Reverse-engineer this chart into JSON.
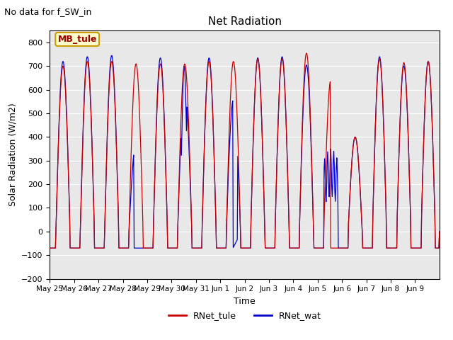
{
  "title": "Net Radiation",
  "subtitle": "No data for f_SW_in",
  "ylabel": "Solar Radiation (W/m2)",
  "xlabel": "Time",
  "ylim": [
    -200,
    850
  ],
  "yticks": [
    -200,
    -100,
    0,
    100,
    200,
    300,
    400,
    500,
    600,
    700,
    800
  ],
  "num_days": 16,
  "color_tule": "#cc0000",
  "color_wat": "#0000cc",
  "legend_labels": [
    "RNet_tule",
    "RNet_wat"
  ],
  "bg_color": "#e8e8e8",
  "legend_box_color": "#ffffcc",
  "legend_box_edge": "#cc9900",
  "site_label": "MB_tule",
  "tick_dates": [
    "May 25",
    "May 26",
    "May 27",
    "May 28",
    "May 29",
    "May 30",
    "May 31",
    "Jun 1",
    "Jun 2",
    "Jun 3",
    "Jun 4",
    "Jun 5",
    "Jun 6",
    "Jun 7",
    "Jun 8",
    "Jun 9"
  ]
}
